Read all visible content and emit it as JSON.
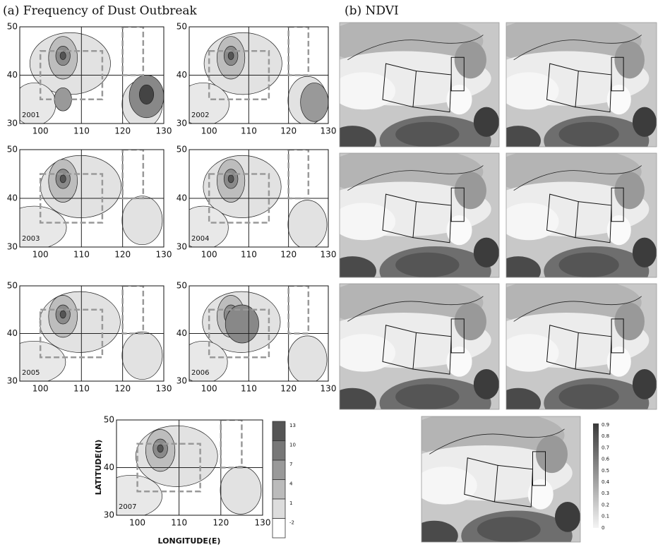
{
  "panel_a": {
    "title": "(a) Frequency of Dust Outbreak",
    "maps": [
      {
        "year": "2001"
      },
      {
        "year": "2002"
      },
      {
        "year": "2003"
      },
      {
        "year": "2004"
      },
      {
        "year": "2005"
      },
      {
        "year": "2006"
      },
      {
        "year": "2007"
      }
    ],
    "yticks": [
      50,
      40,
      30
    ],
    "xticks": [
      100,
      110,
      120,
      130
    ],
    "ylabel": "LATITUDE(N)",
    "xlabel": "LONGITUDE(E)",
    "legend": [
      13,
      10,
      7,
      4,
      1,
      -2
    ]
  },
  "panel_b": {
    "title": "(b) NDVI",
    "legend": [
      0.9,
      0.8,
      0.7,
      0.6,
      0.5,
      0.4,
      0.3,
      0.2,
      0.1,
      0
    ]
  }
}
